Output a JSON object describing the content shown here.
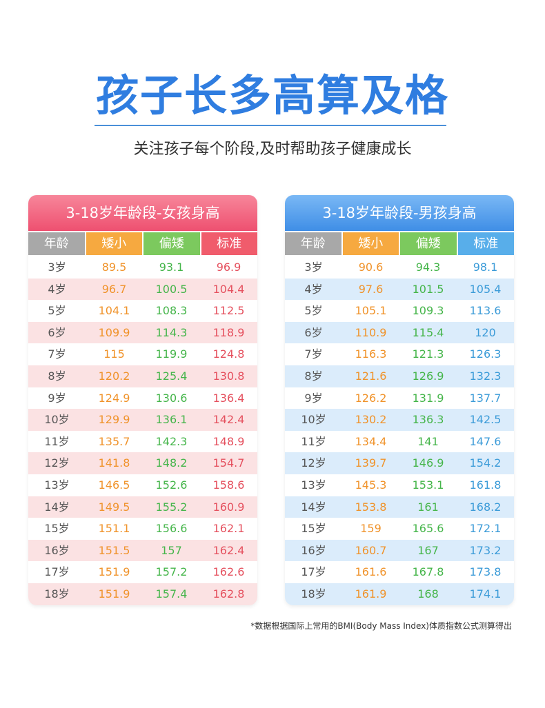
{
  "title": "孩子长多高算及格",
  "subtitle": "关注孩子每个阶段,及时帮助孩子健康成长",
  "tables": [
    {
      "title": "3-18岁年龄段-女孩身高",
      "columns": [
        "年龄",
        "矮小",
        "偏矮",
        "标准"
      ],
      "rows": [
        [
          "3岁",
          "89.5",
          "93.1",
          "96.9"
        ],
        [
          "4岁",
          "96.7",
          "100.5",
          "104.4"
        ],
        [
          "5岁",
          "104.1",
          "108.3",
          "112.5"
        ],
        [
          "6岁",
          "109.9",
          "114.3",
          "118.9"
        ],
        [
          "7岁",
          "115",
          "119.9",
          "124.8"
        ],
        [
          "8岁",
          "120.2",
          "125.4",
          "130.8"
        ],
        [
          "9岁",
          "124.9",
          "130.6",
          "136.4"
        ],
        [
          "10岁",
          "129.9",
          "136.1",
          "142.4"
        ],
        [
          "11岁",
          "135.7",
          "142.3",
          "148.9"
        ],
        [
          "12岁",
          "141.8",
          "148.2",
          "154.7"
        ],
        [
          "13岁",
          "146.5",
          "152.6",
          "158.6"
        ],
        [
          "14岁",
          "149.5",
          "155.2",
          "160.9"
        ],
        [
          "15岁",
          "151.1",
          "156.6",
          "162.1"
        ],
        [
          "16岁",
          "151.5",
          "157",
          "162.4"
        ],
        [
          "17岁",
          "151.9",
          "157.2",
          "162.6"
        ],
        [
          "18岁",
          "151.9",
          "157.4",
          "162.8"
        ]
      ]
    },
    {
      "title": "3-18岁年龄段-男孩身高",
      "columns": [
        "年龄",
        "矮小",
        "偏矮",
        "标准"
      ],
      "rows": [
        [
          "3岁",
          "90.6",
          "94.3",
          "98.1"
        ],
        [
          "4岁",
          "97.6",
          "101.5",
          "105.4"
        ],
        [
          "5岁",
          "105.1",
          "109.3",
          "113.6"
        ],
        [
          "6岁",
          "110.9",
          "115.4",
          "120"
        ],
        [
          "7岁",
          "116.3",
          "121.3",
          "126.3"
        ],
        [
          "8岁",
          "121.6",
          "126.9",
          "132.3"
        ],
        [
          "9岁",
          "126.2",
          "131.9",
          "137.7"
        ],
        [
          "10岁",
          "130.2",
          "136.3",
          "142.5"
        ],
        [
          "11岁",
          "134.4",
          "141",
          "147.6"
        ],
        [
          "12岁",
          "139.7",
          "146.9",
          "154.2"
        ],
        [
          "13岁",
          "145.3",
          "153.1",
          "161.8"
        ],
        [
          "14岁",
          "153.8",
          "161",
          "168.2"
        ],
        [
          "15岁",
          "159",
          "165.6",
          "172.1"
        ],
        [
          "16岁",
          "160.7",
          "167",
          "173.2"
        ],
        [
          "17岁",
          "161.6",
          "167.8",
          "173.8"
        ],
        [
          "18岁",
          "161.9",
          "168",
          "174.1"
        ]
      ]
    }
  ],
  "footnote": "*数据根据国际上常用的BMI(Body Mass Index)体质指数公式测算得出"
}
